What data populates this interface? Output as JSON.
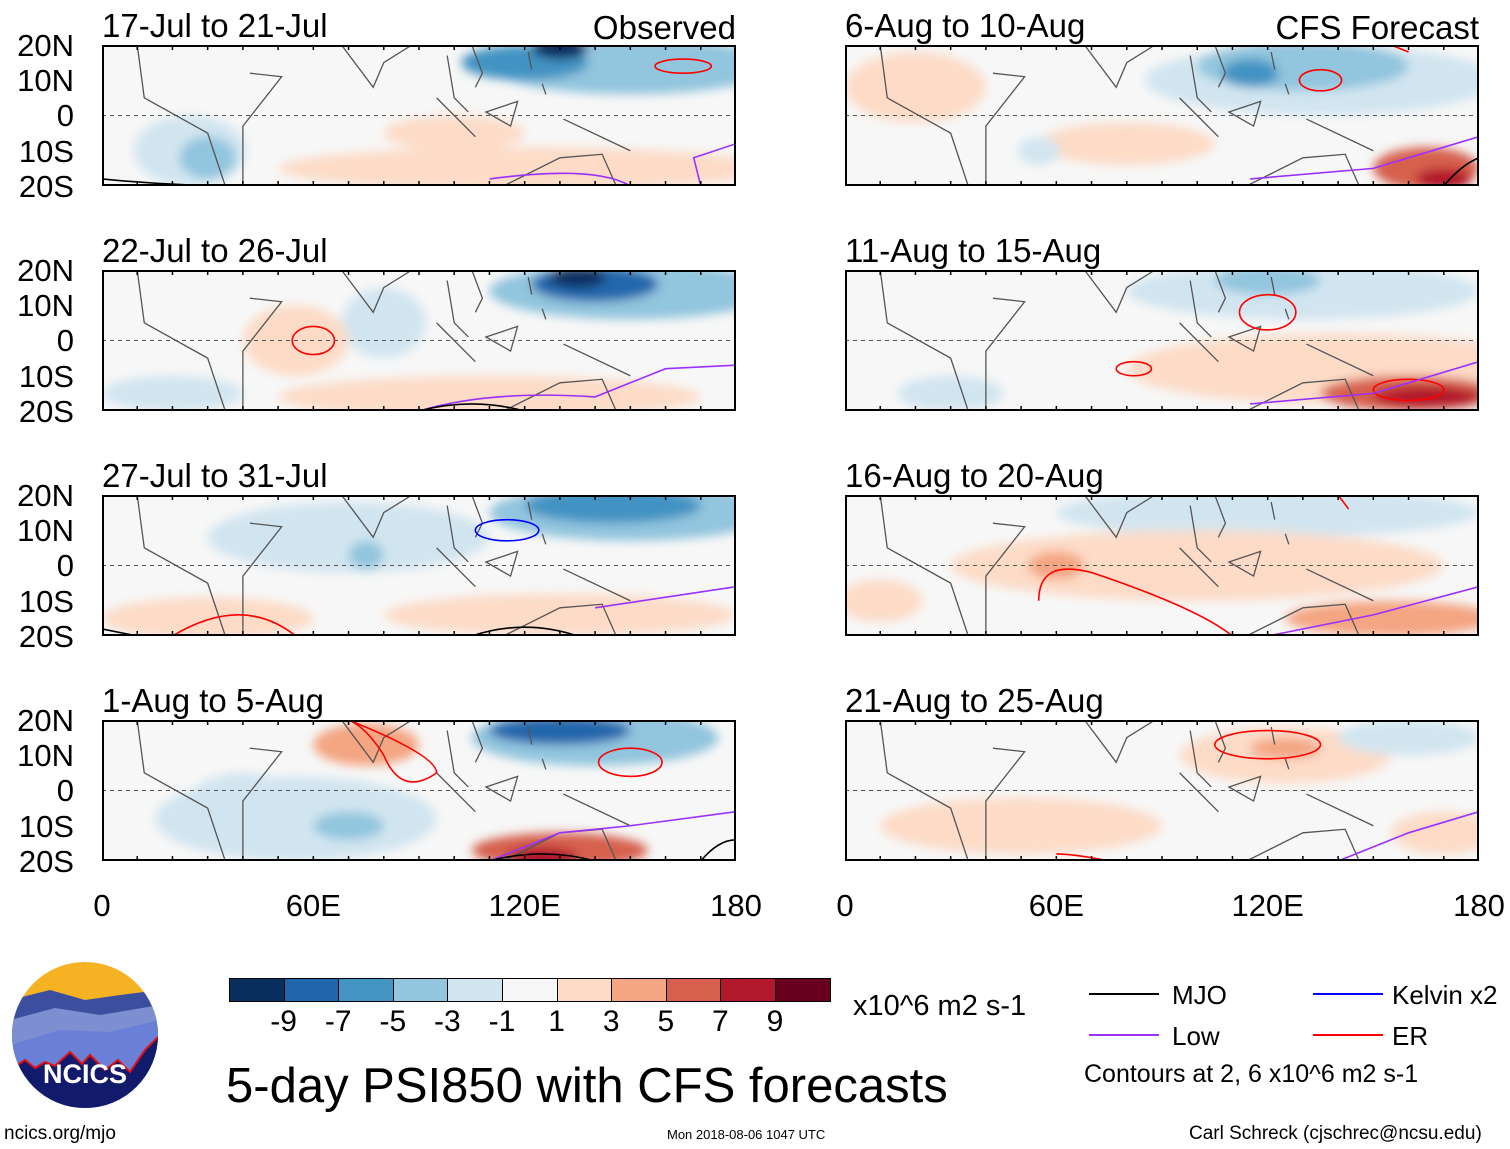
{
  "panels": [
    {
      "title": "17-Jul to 21-Jul",
      "label": "Observed",
      "column": "left",
      "row": 0
    },
    {
      "title": "22-Jul to 26-Jul",
      "column": "left",
      "row": 1
    },
    {
      "title": "27-Jul to 31-Jul",
      "column": "left",
      "row": 2
    },
    {
      "title": "1-Aug to 5-Aug",
      "column": "left",
      "row": 3
    },
    {
      "title": "6-Aug to 10-Aug",
      "label": "CFS Forecast",
      "column": "right",
      "row": 0
    },
    {
      "title": "11-Aug to 15-Aug",
      "column": "right",
      "row": 1
    },
    {
      "title": "16-Aug to 20-Aug",
      "column": "right",
      "row": 2
    },
    {
      "title": "21-Aug to 25-Aug",
      "column": "right",
      "row": 3
    }
  ],
  "axes": {
    "y_ticks": [
      "20N",
      "10N",
      "0",
      "10S",
      "20S"
    ],
    "x_ticks": [
      "0",
      "60E",
      "120E",
      "180"
    ],
    "lon_range": [
      0,
      180
    ],
    "lat_range": [
      -20,
      20
    ]
  },
  "colorbar": {
    "colors": [
      "#0a2f5f",
      "#2166ac",
      "#4393c3",
      "#92c5de",
      "#d1e5f0",
      "#f7f7f7",
      "#fddbc7",
      "#f4a582",
      "#d6604d",
      "#b2182b",
      "#67001f"
    ],
    "labels": [
      "-9",
      "-7",
      "-5",
      "-3",
      "-1",
      "1",
      "3",
      "5",
      "7",
      "9"
    ],
    "units": "x10^6 m2 s-1"
  },
  "title": "5-day PSI850 with CFS forecasts",
  "legend": {
    "items": [
      {
        "label": "MJO",
        "color": "#000000"
      },
      {
        "label": "Kelvin x2",
        "color": "#0000ff"
      },
      {
        "label": "Low",
        "color": "#9b30ff"
      },
      {
        "label": "ER",
        "color": "#ff0000"
      }
    ],
    "note": "Contours at 2, 6 x10^6 m2 s-1"
  },
  "logo": {
    "text": "NCICS"
  },
  "footer": {
    "url": "ncics.org/mjo",
    "timestamp": "Mon 2018-08-06 1047 UTC",
    "author": "Carl Schreck (cjschrec@ncsu.edu)"
  }
}
